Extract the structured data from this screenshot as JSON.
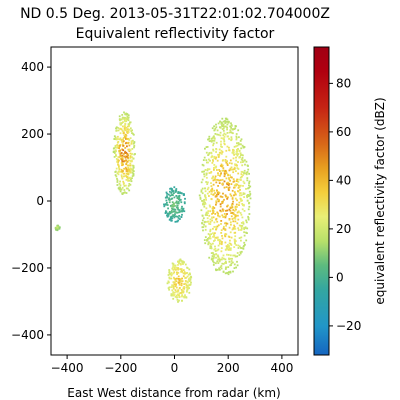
{
  "chart_data": {
    "type": "heatmap",
    "title": "ND 0.5 Deg. 2013-05-31T22:01:02.704000Z",
    "subtitle": "Equivalent reflectivity factor",
    "xlabel": "East West distance from radar (km)",
    "ylabel": "",
    "xlim": [
      -460,
      460
    ],
    "ylim": [
      -460,
      460
    ],
    "xticks": [
      -400,
      -200,
      0,
      200,
      400
    ],
    "yticks": [
      -400,
      -200,
      0,
      200,
      400
    ],
    "colorbar": {
      "label": "equivalent reflectivity factor (dBZ)",
      "range": [
        -32,
        95
      ],
      "ticks": [
        -20,
        0,
        20,
        40,
        60,
        80
      ],
      "colormap": "NWSRef-like",
      "stops": [
        {
          "v": -32,
          "c": "#1565c0"
        },
        {
          "v": -20,
          "c": "#2196c8"
        },
        {
          "v": -5,
          "c": "#34a7a0"
        },
        {
          "v": 5,
          "c": "#5dbb7f"
        },
        {
          "v": 15,
          "c": "#b8e06a"
        },
        {
          "v": 25,
          "c": "#e9ef76"
        },
        {
          "v": 35,
          "c": "#f4cf3c"
        },
        {
          "v": 45,
          "c": "#e8a020"
        },
        {
          "v": 55,
          "c": "#d86818"
        },
        {
          "v": 70,
          "c": "#c62414"
        },
        {
          "v": 85,
          "c": "#b00010"
        },
        {
          "v": 95,
          "c": "#a00014"
        }
      ]
    },
    "regions": [
      {
        "name": "northwest-storm",
        "x": [
          -230,
          -150
        ],
        "y": [
          20,
          270
        ],
        "dbz_range": [
          15,
          55
        ]
      },
      {
        "name": "center-clutter",
        "x": [
          -45,
          40
        ],
        "y": [
          -60,
          45
        ],
        "dbz_range": [
          -5,
          10
        ]
      },
      {
        "name": "east-storm",
        "x": [
          90,
          280
        ],
        "y": [
          -220,
          250
        ],
        "dbz_range": [
          15,
          50
        ]
      },
      {
        "name": "south-cells",
        "x": [
          -30,
          60
        ],
        "y": [
          -300,
          -170
        ],
        "dbz_range": [
          20,
          40
        ]
      },
      {
        "name": "west-speck",
        "x": [
          -450,
          -430
        ],
        "y": [
          -85,
          -70
        ],
        "dbz_range": [
          10,
          20
        ]
      }
    ]
  }
}
